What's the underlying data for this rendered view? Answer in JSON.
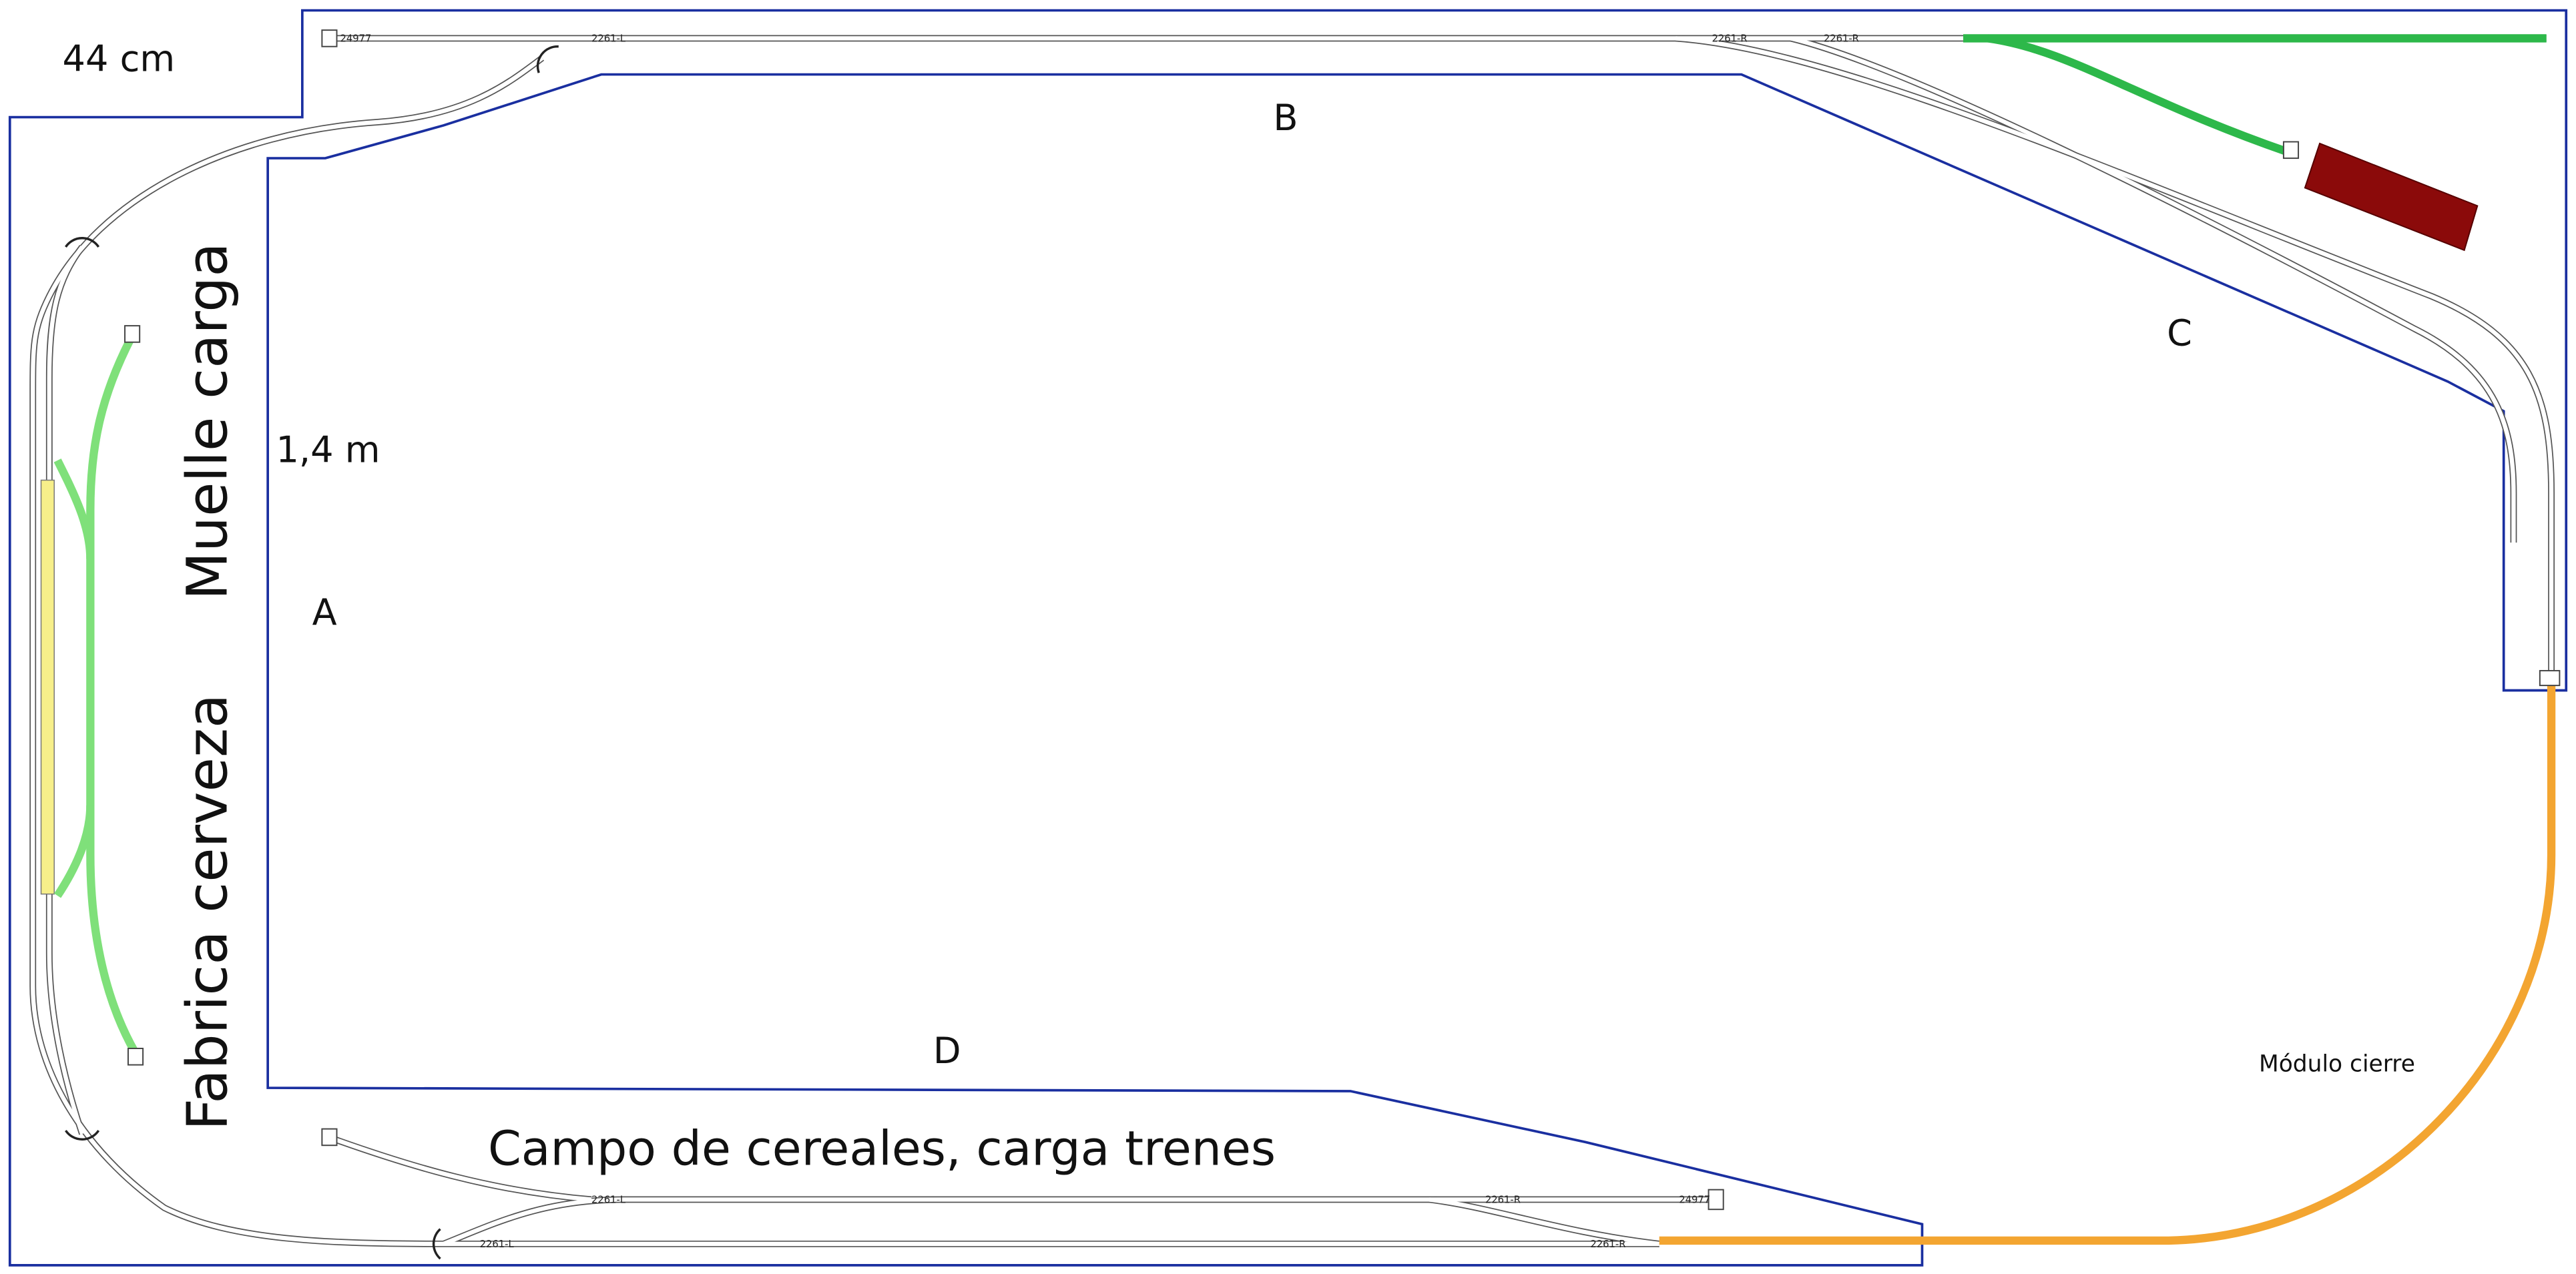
{
  "zone_labels": {
    "size": "44 cm",
    "length": "1,4 m",
    "a": "A",
    "b": "B",
    "c": "C",
    "d": "D"
  },
  "industries": {
    "left_top": "Muelle carga",
    "left_bottom": "Fabrica cerveza",
    "bottom": "Campo de cereales, carga trenes",
    "module": "Módulo cierre"
  },
  "track_labels": [
    "24977",
    "2261-L",
    "2261-R",
    "2261-R",
    "24977",
    "2261-R",
    "2261-L",
    "2261-L",
    "2261-R"
  ]
}
